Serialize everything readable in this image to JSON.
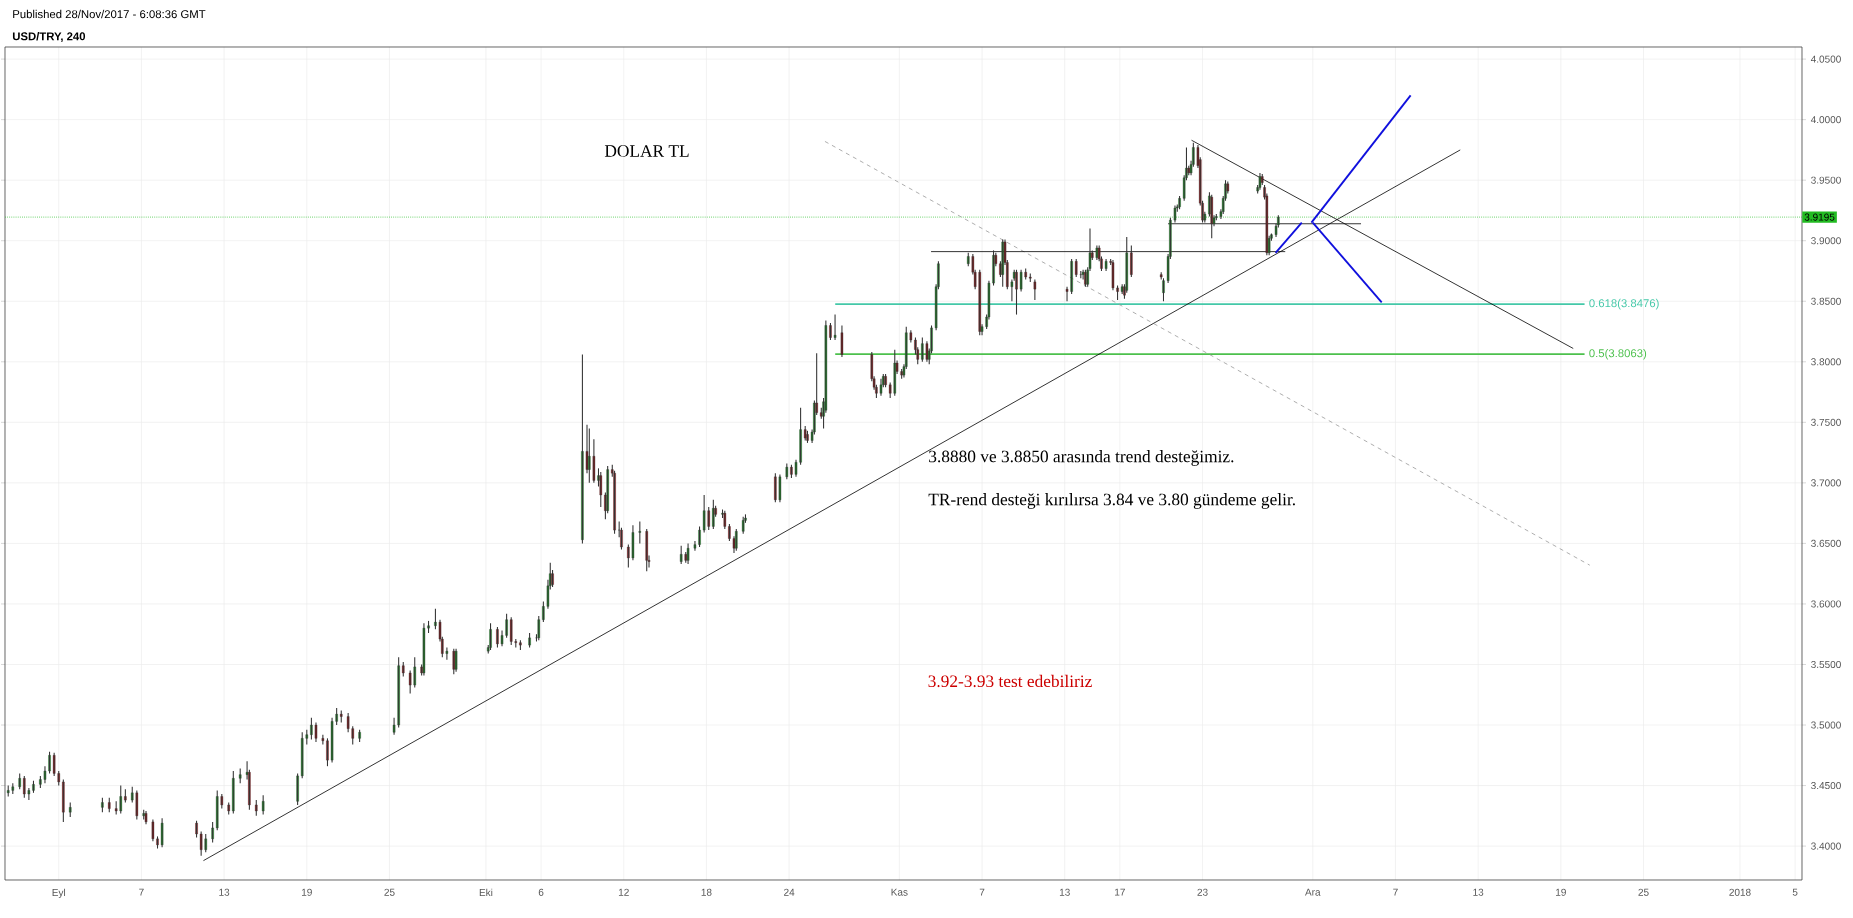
{
  "chart_data": {
    "type": "candlestick",
    "title": "USD/TRY, 240",
    "subtitle": "Published 28/Nov/2017 - 6:08:36 GMT",
    "annotations": [
      "DOLAR TL",
      "3.8880 ve 3.8850 arasında trend desteğimiz.",
      "TR-rend desteği kırılırsa 3.84 ve 3.80 gündeme gelir.",
      "3.92-3.93 test edebiliriz"
    ],
    "xlim": [
      "2017-08-28T02:24",
      "2018-01-05T12:00"
    ],
    "ylim": [
      3.372,
      4.06
    ],
    "grid": true,
    "xticks": [
      {
        "value": "2017-09-01",
        "label": "Eyl"
      },
      {
        "value": "2017-09-07",
        "label": "7"
      },
      {
        "value": "2017-09-13",
        "label": "13"
      },
      {
        "value": "2017-09-19",
        "label": "19"
      },
      {
        "value": "2017-09-25",
        "label": "25"
      },
      {
        "value": "2017-10-02",
        "label": "Eki"
      },
      {
        "value": "2017-10-06",
        "label": "6"
      },
      {
        "value": "2017-10-12",
        "label": "12"
      },
      {
        "value": "2017-10-18",
        "label": "18"
      },
      {
        "value": "2017-10-24",
        "label": "24"
      },
      {
        "value": "2017-11-01",
        "label": "Kas"
      },
      {
        "value": "2017-11-07",
        "label": "7"
      },
      {
        "value": "2017-11-13",
        "label": "13"
      },
      {
        "value": "2017-11-17",
        "label": "17"
      },
      {
        "value": "2017-11-23",
        "label": "23"
      },
      {
        "value": "2017-12-01",
        "label": "Ara"
      },
      {
        "value": "2017-12-07",
        "label": "7"
      },
      {
        "value": "2017-12-13",
        "label": "13"
      },
      {
        "value": "2017-12-19",
        "label": "19"
      },
      {
        "value": "2017-12-25",
        "label": "25"
      },
      {
        "value": "2018-01-01",
        "label": "2018"
      },
      {
        "value": "2018-01-05",
        "label": "5"
      }
    ],
    "yticks": [
      {
        "value": 3.4,
        "label": "3.4000"
      },
      {
        "value": 3.45,
        "label": "3.4500"
      },
      {
        "value": 3.5,
        "label": "3.5000"
      },
      {
        "value": 3.55,
        "label": "3.5500"
      },
      {
        "value": 3.6,
        "label": "3.6000"
      },
      {
        "value": 3.65,
        "label": "3.6500"
      },
      {
        "value": 3.7,
        "label": "3.7000"
      },
      {
        "value": 3.75,
        "label": "3.7500"
      },
      {
        "value": 3.8,
        "label": "3.8000"
      },
      {
        "value": 3.85,
        "label": "3.8500"
      },
      {
        "value": 3.9,
        "label": "3.9000"
      },
      {
        "value": 3.95,
        "label": "3.9500"
      },
      {
        "value": 4.0,
        "label": "4.0000"
      },
      {
        "value": 4.05,
        "label": "4.0500"
      }
    ],
    "ref_lines": [
      {
        "axis": "y",
        "value": 3.9195,
        "label": "3.9195",
        "color": "#22bb22",
        "line_style": "dotted"
      },
      {
        "axis": "y",
        "value": 3.8476,
        "label": "0.618(3.8476)",
        "color": "#44c8a8"
      },
      {
        "axis": "y",
        "value": 3.8063,
        "label": "0.5(3.8063)",
        "color": "#4cc04c"
      }
    ],
    "series": [
      {
        "type": "line",
        "color": "#000000",
        "x": [
          "2017-09-11T12:00",
          "2017-12-11T16:48"
        ],
        "values": [
          3.388,
          3.975
        ]
      },
      {
        "type": "line",
        "color": "#000000",
        "x": [
          "2017-11-22T04:48",
          "2017-12-19T21:36"
        ],
        "values": [
          3.983,
          3.811
        ]
      },
      {
        "type": "line",
        "color": "#999999",
        "line_style": "dashed",
        "x": [
          "2017-10-26T14:24",
          "2017-12-21T02:24"
        ],
        "values": [
          3.982,
          3.632
        ]
      },
      {
        "type": "line",
        "color": "#000000",
        "x": [
          "2017-11-03T07:12",
          "2017-11-29T00:00"
        ],
        "values": [
          3.891,
          3.891
        ]
      },
      {
        "type": "line",
        "color": "#000000",
        "x": [
          "2017-11-20T12:00",
          "2017-12-04T12:00"
        ],
        "values": [
          3.914,
          3.914
        ]
      },
      {
        "type": "line",
        "color": "#1010dd",
        "x": [
          "2017-11-28T07:12",
          "2017-11-30T04:48"
        ],
        "values": [
          3.89,
          3.915
        ]
      },
      {
        "type": "line",
        "color": "#1010dd",
        "x": [
          "2017-11-30T21:36",
          "2017-12-08T02:24"
        ],
        "values": [
          3.915,
          4.02
        ]
      },
      {
        "type": "line",
        "color": "#1010dd",
        "x": [
          "2017-12-01T00:00",
          "2017-12-06T00:00"
        ],
        "values": [
          3.915,
          3.849
        ]
      }
    ],
    "x": [
      "2017-08-28T08:00",
      "2017-08-28T16:00",
      "2017-08-29T04:00",
      "2017-08-29T12:00",
      "2017-08-29T20:00",
      "2017-08-30T04:00",
      "2017-08-30T16:00",
      "2017-08-31T00:00",
      "2017-08-31T08:00",
      "2017-08-31T16:00",
      "2017-09-01T00:00",
      "2017-09-01T08:00",
      "2017-09-01T20:00",
      "2017-09-04T04:00",
      "2017-09-04T16:00",
      "2017-09-05T04:00",
      "2017-09-05T12:00",
      "2017-09-05T20:00",
      "2017-09-06T08:00",
      "2017-09-06T16:00",
      "2017-09-07T04:00",
      "2017-09-07T08:00",
      "2017-09-07T20:00",
      "2017-09-08T04:00",
      "2017-09-08T12:00",
      "2017-09-11T00:00",
      "2017-09-11T08:00",
      "2017-09-11T16:00",
      "2017-09-12T04:00",
      "2017-09-12T12:00",
      "2017-09-12T20:00",
      "2017-09-13T08:00",
      "2017-09-13T16:00",
      "2017-09-14T04:00",
      "2017-09-14T16:00",
      "2017-09-14T20:00",
      "2017-09-15T08:00",
      "2017-09-15T20:00",
      "2017-09-18T08:00",
      "2017-09-18T16:00",
      "2017-09-19T00:00",
      "2017-09-19T08:00",
      "2017-09-19T16:00",
      "2017-09-20T04:00",
      "2017-09-20T12:00",
      "2017-09-20T20:00",
      "2017-09-21T04:00",
      "2017-09-21T12:00",
      "2017-09-22T00:00",
      "2017-09-22T08:00",
      "2017-09-22T20:00",
      "2017-09-25T08:00",
      "2017-09-25T16:00",
      "2017-09-26T00:00",
      "2017-09-26T12:00",
      "2017-09-26T20:00",
      "2017-09-27T08:00",
      "2017-09-27T12:00",
      "2017-09-27T20:00",
      "2017-09-28T08:00",
      "2017-09-28T16:00",
      "2017-09-28T20:00",
      "2017-09-29T04:00",
      "2017-09-29T16:00",
      "2017-09-29T20:00",
      "2017-10-02T04:00",
      "2017-10-02T08:00",
      "2017-10-02T20:00",
      "2017-10-03T04:00",
      "2017-10-03T12:00",
      "2017-10-03T20:00",
      "2017-10-04T04:00",
      "2017-10-04T12:00",
      "2017-10-05T04:00",
      "2017-10-05T16:00",
      "2017-10-05T20:00",
      "2017-10-06T04:00",
      "2017-10-06T12:00",
      "2017-10-06T16:00",
      "2017-10-06T20:00",
      "2017-10-09T00:00",
      "2017-10-09T08:00",
      "2017-10-09T12:00",
      "2017-10-09T20:00",
      "2017-10-10T04:00",
      "2017-10-10T08:00",
      "2017-10-10T16:00",
      "2017-10-10T20:00",
      "2017-10-11T04:00",
      "2017-10-11T08:00",
      "2017-10-11T16:00",
      "2017-10-11T20:00",
      "2017-10-12T08:00",
      "2017-10-12T16:00",
      "2017-10-13T04:00",
      "2017-10-13T16:00",
      "2017-10-13T20:00",
      "2017-10-16T04:00",
      "2017-10-16T12:00",
      "2017-10-16T16:00",
      "2017-10-17T04:00",
      "2017-10-17T12:00",
      "2017-10-17T20:00",
      "2017-10-18T04:00",
      "2017-10-18T12:00",
      "2017-10-18T16:00",
      "2017-10-19T04:00",
      "2017-10-19T08:00",
      "2017-10-19T16:00",
      "2017-10-20T00:00",
      "2017-10-20T04:00",
      "2017-10-20T16:00",
      "2017-10-20T20:00",
      "2017-10-23T00:00",
      "2017-10-23T08:00",
      "2017-10-23T20:00",
      "2017-10-24T04:00",
      "2017-10-24T12:00",
      "2017-10-24T20:00",
      "2017-10-25T04:00",
      "2017-10-25T08:00",
      "2017-10-25T16:00",
      "2017-10-25T20:00",
      "2017-10-26T00:00",
      "2017-10-26T08:00",
      "2017-10-26T12:00",
      "2017-10-26T16:00",
      "2017-10-27T00:00",
      "2017-10-27T08:00",
      "2017-10-27T20:00",
      "2017-10-30T00:00",
      "2017-10-30T04:00",
      "2017-10-30T08:00",
      "2017-10-30T16:00",
      "2017-10-30T20:00",
      "2017-10-31T00:00",
      "2017-10-31T08:00",
      "2017-10-31T16:00",
      "2017-10-31T20:00",
      "2017-11-01T04:00",
      "2017-11-01T08:00",
      "2017-11-01T12:00",
      "2017-11-01T20:00",
      "2017-11-02T04:00",
      "2017-11-02T08:00",
      "2017-11-02T16:00",
      "2017-11-03T00:00",
      "2017-11-03T04:00",
      "2017-11-03T08:00",
      "2017-11-03T16:00",
      "2017-11-03T20:00",
      "2017-11-06T00:00",
      "2017-11-06T08:00",
      "2017-11-06T12:00",
      "2017-11-06T20:00",
      "2017-11-07T00:00",
      "2017-11-07T08:00",
      "2017-11-07T12:00",
      "2017-11-07T20:00",
      "2017-11-08T00:00",
      "2017-11-08T08:00",
      "2017-11-08T12:00",
      "2017-11-08T16:00",
      "2017-11-08T20:00",
      "2017-11-09T04:00",
      "2017-11-09T08:00",
      "2017-11-09T12:00",
      "2017-11-09T20:00",
      "2017-11-10T04:00",
      "2017-11-10T12:00",
      "2017-11-10T20:00",
      "2017-11-13T04:00",
      "2017-11-13T12:00",
      "2017-11-13T20:00",
      "2017-11-14T04:00",
      "2017-11-14T08:00",
      "2017-11-14T12:00",
      "2017-11-14T16:00",
      "2017-11-14T20:00",
      "2017-11-15T00:00",
      "2017-11-15T08:00",
      "2017-11-15T12:00",
      "2017-11-15T16:00",
      "2017-11-16T00:00",
      "2017-11-16T08:00",
      "2017-11-16T12:00",
      "2017-11-16T20:00",
      "2017-11-17T04:00",
      "2017-11-17T08:00",
      "2017-11-17T12:00",
      "2017-11-17T20:00",
      "2017-11-20T00:00",
      "2017-11-20T04:00",
      "2017-11-20T12:00",
      "2017-11-20T16:00",
      "2017-11-21T00:00",
      "2017-11-21T04:00",
      "2017-11-21T08:00",
      "2017-11-21T16:00",
      "2017-11-21T20:00",
      "2017-11-22T00:00",
      "2017-11-22T04:00",
      "2017-11-22T08:00",
      "2017-11-22T16:00",
      "2017-11-22T20:00",
      "2017-11-23T00:00",
      "2017-11-23T04:00",
      "2017-11-23T12:00",
      "2017-11-23T16:00",
      "2017-11-23T20:00",
      "2017-11-24T00:00",
      "2017-11-24T08:00",
      "2017-11-24T12:00",
      "2017-11-24T16:00",
      "2017-11-24T20:00",
      "2017-11-27T00:00",
      "2017-11-27T04:00",
      "2017-11-27T08:00",
      "2017-11-27T12:00",
      "2017-11-27T16:00",
      "2017-11-27T20:00",
      "2017-11-28T00:00",
      "2017-11-28T08:00",
      "2017-11-28T12:00"
    ],
    "ohlc": [
      [
        3.444,
        3.45,
        3.441,
        3.446
      ],
      [
        3.446,
        3.452,
        3.443,
        3.449
      ],
      [
        3.449,
        3.46,
        3.447,
        3.456
      ],
      [
        3.456,
        3.458,
        3.44,
        3.443
      ],
      [
        3.443,
        3.448,
        3.438,
        3.446
      ],
      [
        3.446,
        3.454,
        3.444,
        3.451
      ],
      [
        3.451,
        3.458,
        3.448,
        3.455
      ],
      [
        3.455,
        3.466,
        3.452,
        3.462
      ],
      [
        3.462,
        3.478,
        3.46,
        3.475
      ],
      [
        3.475,
        3.477,
        3.458,
        3.46
      ],
      [
        3.46,
        3.462,
        3.45,
        3.453
      ],
      [
        3.453,
        3.455,
        3.42,
        3.428
      ],
      [
        3.428,
        3.436,
        3.424,
        3.432
      ],
      [
        3.432,
        3.44,
        3.428,
        3.436
      ],
      [
        3.436,
        3.44,
        3.428,
        3.431
      ],
      [
        3.431,
        3.437,
        3.426,
        3.429
      ],
      [
        3.429,
        3.45,
        3.427,
        3.441
      ],
      [
        3.441,
        3.447,
        3.436,
        3.438
      ],
      [
        3.438,
        3.449,
        3.436,
        3.444
      ],
      [
        3.444,
        3.446,
        3.422,
        3.425
      ],
      [
        3.425,
        3.43,
        3.422,
        3.427
      ],
      [
        3.427,
        3.429,
        3.418,
        3.42
      ],
      [
        3.42,
        3.422,
        3.404,
        3.406
      ],
      [
        3.406,
        3.408,
        3.398,
        3.401
      ],
      [
        3.401,
        3.423,
        3.399,
        3.419
      ],
      [
        3.419,
        3.421,
        3.407,
        3.41
      ],
      [
        3.41,
        3.412,
        3.392,
        3.397
      ],
      [
        3.397,
        3.41,
        3.395,
        3.406
      ],
      [
        3.406,
        3.42,
        3.403,
        3.415
      ],
      [
        3.415,
        3.446,
        3.413,
        3.441
      ],
      [
        3.441,
        3.443,
        3.431,
        3.434
      ],
      [
        3.434,
        3.436,
        3.426,
        3.429
      ],
      [
        3.429,
        3.462,
        3.427,
        3.456
      ],
      [
        3.456,
        3.464,
        3.452,
        3.459
      ],
      [
        3.459,
        3.47,
        3.455,
        3.461
      ],
      [
        3.461,
        3.463,
        3.43,
        3.434
      ],
      [
        3.434,
        3.438,
        3.425,
        3.429
      ],
      [
        3.429,
        3.442,
        3.426,
        3.437
      ],
      [
        3.437,
        3.46,
        3.434,
        3.458
      ],
      [
        3.458,
        3.494,
        3.456,
        3.489
      ],
      [
        3.489,
        3.496,
        3.484,
        3.492
      ],
      [
        3.492,
        3.506,
        3.488,
        3.5
      ],
      [
        3.5,
        3.502,
        3.486,
        3.489
      ],
      [
        3.489,
        3.492,
        3.484,
        3.487
      ],
      [
        3.487,
        3.489,
        3.466,
        3.471
      ],
      [
        3.471,
        3.506,
        3.469,
        3.503
      ],
      [
        3.503,
        3.514,
        3.5,
        3.509
      ],
      [
        3.509,
        3.512,
        3.502,
        3.507
      ],
      [
        3.507,
        3.51,
        3.494,
        3.497
      ],
      [
        3.497,
        3.499,
        3.484,
        3.489
      ],
      [
        3.489,
        3.496,
        3.486,
        3.494
      ],
      [
        3.494,
        3.506,
        3.492,
        3.5
      ],
      [
        3.5,
        3.556,
        3.498,
        3.549
      ],
      [
        3.549,
        3.552,
        3.54,
        3.543
      ],
      [
        3.543,
        3.545,
        3.526,
        3.533
      ],
      [
        3.533,
        3.556,
        3.531,
        3.548
      ],
      [
        3.548,
        3.55,
        3.541,
        3.543
      ],
      [
        3.543,
        3.584,
        3.541,
        3.58
      ],
      [
        3.58,
        3.586,
        3.576,
        3.582
      ],
      [
        3.582,
        3.596,
        3.579,
        3.585
      ],
      [
        3.585,
        3.587,
        3.569,
        3.571
      ],
      [
        3.571,
        3.573,
        3.556,
        3.559
      ],
      [
        3.559,
        3.564,
        3.554,
        3.561
      ],
      [
        3.561,
        3.563,
        3.542,
        3.546
      ],
      [
        3.546,
        3.563,
        3.544,
        3.561
      ],
      [
        3.561,
        3.566,
        3.559,
        3.564
      ],
      [
        3.564,
        3.584,
        3.562,
        3.579
      ],
      [
        3.579,
        3.581,
        3.564,
        3.567
      ],
      [
        3.567,
        3.578,
        3.565,
        3.574
      ],
      [
        3.574,
        3.592,
        3.572,
        3.587
      ],
      [
        3.587,
        3.589,
        3.566,
        3.569
      ],
      [
        3.569,
        3.571,
        3.564,
        3.568
      ],
      [
        3.568,
        3.57,
        3.562,
        3.566
      ],
      [
        3.566,
        3.576,
        3.564,
        3.572
      ],
      [
        3.572,
        3.575,
        3.569,
        3.572
      ],
      [
        3.572,
        3.59,
        3.57,
        3.587
      ],
      [
        3.587,
        3.602,
        3.585,
        3.598
      ],
      [
        3.598,
        3.62,
        3.596,
        3.615
      ],
      [
        3.615,
        3.634,
        3.612,
        3.625
      ],
      [
        3.625,
        3.628,
        3.614,
        3.616
      ],
      [
        3.653,
        3.806,
        3.65,
        3.726
      ],
      [
        3.726,
        3.748,
        3.708,
        3.711
      ],
      [
        3.711,
        3.745,
        3.7,
        3.722
      ],
      [
        3.722,
        3.736,
        3.7,
        3.702
      ],
      [
        3.702,
        3.712,
        3.697,
        3.706
      ],
      [
        3.706,
        3.709,
        3.68,
        3.69
      ],
      [
        3.69,
        3.692,
        3.67,
        3.677
      ],
      [
        3.677,
        3.714,
        3.675,
        3.711
      ],
      [
        3.711,
        3.715,
        3.705,
        3.708
      ],
      [
        3.708,
        3.71,
        3.658,
        3.661
      ],
      [
        3.661,
        3.668,
        3.655,
        3.661
      ],
      [
        3.661,
        3.663,
        3.645,
        3.647
      ],
      [
        3.647,
        3.649,
        3.63,
        3.638
      ],
      [
        3.638,
        3.665,
        3.636,
        3.659
      ],
      [
        3.659,
        3.668,
        3.65,
        3.66
      ],
      [
        3.66,
        3.662,
        3.627,
        3.636
      ],
      [
        3.636,
        3.64,
        3.63,
        3.635
      ],
      [
        3.635,
        3.648,
        3.633,
        3.641
      ],
      [
        3.641,
        3.643,
        3.634,
        3.636
      ],
      [
        3.636,
        3.65,
        3.633,
        3.646
      ],
      [
        3.646,
        3.652,
        3.644,
        3.649
      ],
      [
        3.649,
        3.664,
        3.647,
        3.661
      ],
      [
        3.661,
        3.69,
        3.659,
        3.677
      ],
      [
        3.677,
        3.68,
        3.661,
        3.664
      ],
      [
        3.664,
        3.686,
        3.662,
        3.679
      ],
      [
        3.679,
        3.681,
        3.672,
        3.674
      ],
      [
        3.674,
        3.678,
        3.671,
        3.675
      ],
      [
        3.675,
        3.677,
        3.662,
        3.664
      ],
      [
        3.664,
        3.666,
        3.652,
        3.654
      ],
      [
        3.654,
        3.656,
        3.642,
        3.646
      ],
      [
        3.646,
        3.662,
        3.644,
        3.66
      ],
      [
        3.66,
        3.672,
        3.658,
        3.669
      ],
      [
        3.669,
        3.674,
        3.667,
        3.671
      ],
      [
        3.705,
        3.708,
        3.684,
        3.686
      ],
      [
        3.686,
        3.707,
        3.684,
        3.705
      ],
      [
        3.705,
        3.716,
        3.703,
        3.713
      ],
      [
        3.713,
        3.715,
        3.704,
        3.707
      ],
      [
        3.707,
        3.719,
        3.705,
        3.717
      ],
      [
        3.717,
        3.762,
        3.715,
        3.744
      ],
      [
        3.744,
        3.747,
        3.735,
        3.737
      ],
      [
        3.74,
        3.743,
        3.733,
        3.735
      ],
      [
        3.735,
        3.744,
        3.733,
        3.742
      ],
      [
        3.742,
        3.768,
        3.74,
        3.766
      ],
      [
        3.766,
        3.807,
        3.756,
        3.758
      ],
      [
        3.758,
        3.762,
        3.753,
        3.755
      ],
      [
        3.755,
        3.77,
        3.745,
        3.767
      ],
      [
        3.76,
        3.834,
        3.758,
        3.83
      ],
      [
        3.83,
        3.832,
        3.818,
        3.82
      ],
      [
        3.82,
        3.839,
        3.818,
        3.822
      ],
      [
        3.824,
        3.83,
        3.804,
        3.806
      ],
      [
        3.806,
        3.808,
        3.784,
        3.786
      ],
      [
        3.786,
        3.788,
        3.777,
        3.779
      ],
      [
        3.779,
        3.781,
        3.77,
        3.774
      ],
      [
        3.774,
        3.786,
        3.772,
        3.781
      ],
      [
        3.781,
        3.79,
        3.779,
        3.788
      ],
      [
        3.788,
        3.79,
        3.779,
        3.781
      ],
      [
        3.781,
        3.783,
        3.77,
        3.774
      ],
      [
        3.774,
        3.81,
        3.772,
        3.799
      ],
      [
        3.799,
        3.801,
        3.79,
        3.792
      ],
      [
        3.792,
        3.794,
        3.786,
        3.789
      ],
      [
        3.789,
        3.798,
        3.787,
        3.796
      ],
      [
        3.796,
        3.829,
        3.794,
        3.824
      ],
      [
        3.824,
        3.826,
        3.816,
        3.818
      ],
      [
        3.818,
        3.82,
        3.806,
        3.81
      ],
      [
        3.81,
        3.812,
        3.798,
        3.802
      ],
      [
        3.802,
        3.82,
        3.8,
        3.815
      ],
      [
        3.815,
        3.817,
        3.8,
        3.802
      ],
      [
        3.802,
        3.811,
        3.798,
        3.809
      ],
      [
        3.809,
        3.83,
        3.807,
        3.828
      ],
      [
        3.828,
        3.864,
        3.826,
        3.862
      ],
      [
        3.862,
        3.883,
        3.86,
        3.881
      ],
      [
        3.881,
        3.89,
        3.879,
        3.887
      ],
      [
        3.887,
        3.889,
        3.872,
        3.874
      ],
      [
        3.874,
        3.876,
        3.86,
        3.862
      ],
      [
        3.874,
        3.876,
        3.822,
        3.825
      ],
      [
        3.825,
        3.831,
        3.822,
        3.829
      ],
      [
        3.829,
        3.839,
        3.827,
        3.837
      ],
      [
        3.837,
        3.867,
        3.835,
        3.865
      ],
      [
        3.865,
        3.892,
        3.863,
        3.888
      ],
      [
        3.888,
        3.89,
        3.879,
        3.881
      ],
      [
        3.881,
        3.883,
        3.87,
        3.872
      ],
      [
        3.872,
        3.901,
        3.862,
        3.899
      ],
      [
        3.899,
        3.901,
        3.88,
        3.882
      ],
      [
        3.882,
        3.884,
        3.86,
        3.862
      ],
      [
        3.862,
        3.868,
        3.85,
        3.866
      ],
      [
        3.869,
        3.876,
        3.867,
        3.874
      ],
      [
        3.874,
        3.876,
        3.839,
        3.86
      ],
      [
        3.86,
        3.876,
        3.858,
        3.874
      ],
      [
        3.874,
        3.877,
        3.868,
        3.87
      ],
      [
        3.87,
        3.873,
        3.866,
        3.869
      ],
      [
        3.866,
        3.868,
        3.851,
        3.86
      ],
      [
        3.86,
        3.862,
        3.85,
        3.858
      ],
      [
        3.858,
        3.885,
        3.856,
        3.883
      ],
      [
        3.883,
        3.885,
        3.87,
        3.872
      ],
      [
        3.872,
        3.875,
        3.869,
        3.872
      ],
      [
        3.872,
        3.876,
        3.868,
        3.874
      ],
      [
        3.874,
        3.876,
        3.862,
        3.864
      ],
      [
        3.864,
        3.878,
        3.862,
        3.876
      ],
      [
        3.877,
        3.91,
        3.875,
        3.89
      ],
      [
        3.89,
        3.892,
        3.884,
        3.886
      ],
      [
        3.886,
        3.896,
        3.884,
        3.894
      ],
      [
        3.894,
        3.896,
        3.883,
        3.885
      ],
      [
        3.885,
        3.887,
        3.875,
        3.877
      ],
      [
        3.877,
        3.885,
        3.875,
        3.883
      ],
      [
        3.883,
        3.885,
        3.88,
        3.882
      ],
      [
        3.882,
        3.884,
        3.859,
        3.861
      ],
      [
        3.861,
        3.863,
        3.851,
        3.858
      ],
      [
        3.858,
        3.864,
        3.856,
        3.862
      ],
      [
        3.862,
        3.864,
        3.852,
        3.855
      ],
      [
        3.859,
        3.903,
        3.857,
        3.89
      ],
      [
        3.89,
        3.896,
        3.87,
        3.872
      ],
      [
        3.872,
        3.874,
        3.868,
        3.87
      ],
      [
        3.857,
        3.869,
        3.85,
        3.867
      ],
      [
        3.867,
        3.889,
        3.865,
        3.887
      ],
      [
        3.887,
        3.919,
        3.885,
        3.917
      ],
      [
        3.917,
        3.929,
        3.915,
        3.927
      ],
      [
        3.927,
        3.93,
        3.924,
        3.928
      ],
      [
        3.928,
        3.937,
        3.926,
        3.935
      ],
      [
        3.935,
        3.954,
        3.933,
        3.952
      ],
      [
        3.952,
        3.977,
        3.95,
        3.96
      ],
      [
        3.96,
        3.962,
        3.954,
        3.956
      ],
      [
        3.956,
        3.966,
        3.954,
        3.963
      ],
      [
        3.963,
        3.981,
        3.961,
        3.977
      ],
      [
        3.977,
        3.979,
        3.96,
        3.962
      ],
      [
        3.967,
        3.969,
        3.929,
        3.931
      ],
      [
        3.931,
        3.933,
        3.915,
        3.917
      ],
      [
        3.917,
        3.924,
        3.915,
        3.922
      ],
      [
        3.922,
        3.94,
        3.92,
        3.937
      ],
      [
        3.936,
        3.938,
        3.902,
        3.914
      ],
      [
        3.914,
        3.921,
        3.912,
        3.919
      ],
      [
        3.919,
        3.922,
        3.917,
        3.92
      ],
      [
        3.92,
        3.926,
        3.918,
        3.924
      ],
      [
        3.924,
        3.937,
        3.922,
        3.935
      ],
      [
        3.935,
        3.95,
        3.933,
        3.947
      ],
      [
        3.947,
        3.949,
        3.939,
        3.941
      ],
      [
        3.941,
        3.946,
        3.939,
        3.944
      ],
      [
        3.944,
        3.956,
        3.942,
        3.953
      ],
      [
        3.953,
        3.955,
        3.946,
        3.948
      ],
      [
        3.944,
        3.946,
        3.934,
        3.936
      ],
      [
        3.937,
        3.939,
        3.888,
        3.89
      ],
      [
        3.89,
        3.904,
        3.888,
        3.902
      ],
      [
        3.902,
        3.906,
        3.9,
        3.905
      ],
      [
        3.905,
        3.914,
        3.903,
        3.912
      ],
      [
        3.913,
        3.921,
        3.911,
        3.9195
      ]
    ]
  }
}
